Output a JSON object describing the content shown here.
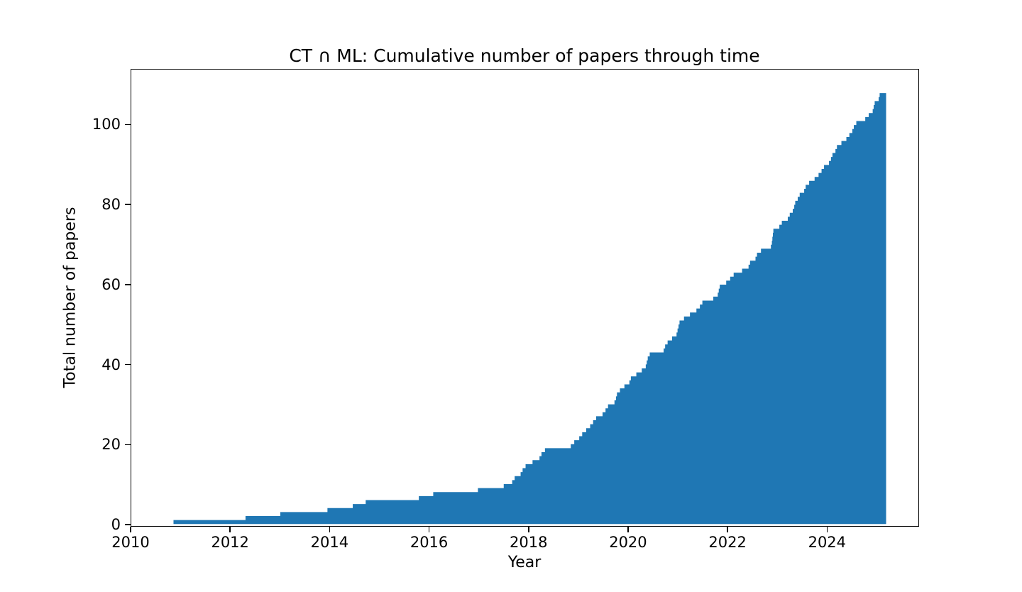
{
  "figure": {
    "title": "CT ∩ ML: Cumulative number of papers through time",
    "xlabel": "Year",
    "ylabel": "Total number of papers"
  },
  "chart_data": {
    "type": "area",
    "subtype": "cumulative-step-post",
    "title": "CT ∩ ML: Cumulative number of papers through time",
    "xlabel": "Year",
    "ylabel": "Total number of papers",
    "grid": false,
    "legend": null,
    "fill_color": "#1f77b4",
    "xlim": [
      2010.0,
      2025.85
    ],
    "ylim": [
      -0.5,
      113.9
    ],
    "x_ticks": [
      2010,
      2012,
      2014,
      2016,
      2018,
      2020,
      2022,
      2024
    ],
    "y_ticks": [
      0,
      20,
      40,
      60,
      80,
      100
    ],
    "series_end_x": 2025.2,
    "final_value": 108,
    "points": [
      [
        2010.85,
        1
      ],
      [
        2012.3,
        2
      ],
      [
        2013.0,
        3
      ],
      [
        2013.95,
        4
      ],
      [
        2014.46,
        5
      ],
      [
        2014.72,
        6
      ],
      [
        2015.79,
        7
      ],
      [
        2016.08,
        8
      ],
      [
        2016.98,
        9
      ],
      [
        2017.5,
        10
      ],
      [
        2017.67,
        11
      ],
      [
        2017.72,
        12
      ],
      [
        2017.84,
        13
      ],
      [
        2017.88,
        14
      ],
      [
        2017.94,
        15
      ],
      [
        2018.08,
        16
      ],
      [
        2018.22,
        17
      ],
      [
        2018.26,
        18
      ],
      [
        2018.33,
        19
      ],
      [
        2018.85,
        20
      ],
      [
        2018.92,
        21
      ],
      [
        2019.02,
        22
      ],
      [
        2019.08,
        23
      ],
      [
        2019.16,
        24
      ],
      [
        2019.24,
        25
      ],
      [
        2019.3,
        26
      ],
      [
        2019.36,
        27
      ],
      [
        2019.49,
        28
      ],
      [
        2019.55,
        29
      ],
      [
        2019.6,
        30
      ],
      [
        2019.73,
        31
      ],
      [
        2019.76,
        32
      ],
      [
        2019.78,
        33
      ],
      [
        2019.84,
        34
      ],
      [
        2019.93,
        35
      ],
      [
        2020.03,
        36
      ],
      [
        2020.06,
        37
      ],
      [
        2020.17,
        38
      ],
      [
        2020.28,
        39
      ],
      [
        2020.36,
        40
      ],
      [
        2020.38,
        41
      ],
      [
        2020.4,
        42
      ],
      [
        2020.44,
        43
      ],
      [
        2020.72,
        44
      ],
      [
        2020.75,
        45
      ],
      [
        2020.8,
        46
      ],
      [
        2020.89,
        47
      ],
      [
        2020.98,
        48
      ],
      [
        2021.0,
        49
      ],
      [
        2021.02,
        50
      ],
      [
        2021.04,
        51
      ],
      [
        2021.13,
        52
      ],
      [
        2021.25,
        53
      ],
      [
        2021.38,
        54
      ],
      [
        2021.45,
        55
      ],
      [
        2021.5,
        56
      ],
      [
        2021.72,
        57
      ],
      [
        2021.81,
        58
      ],
      [
        2021.83,
        59
      ],
      [
        2021.85,
        60
      ],
      [
        2021.98,
        61
      ],
      [
        2022.06,
        62
      ],
      [
        2022.13,
        63
      ],
      [
        2022.3,
        64
      ],
      [
        2022.43,
        65
      ],
      [
        2022.46,
        66
      ],
      [
        2022.57,
        67
      ],
      [
        2022.6,
        68
      ],
      [
        2022.68,
        69
      ],
      [
        2022.88,
        70
      ],
      [
        2022.9,
        71
      ],
      [
        2022.91,
        72
      ],
      [
        2022.92,
        73
      ],
      [
        2022.93,
        74
      ],
      [
        2023.05,
        75
      ],
      [
        2023.1,
        76
      ],
      [
        2023.22,
        77
      ],
      [
        2023.26,
        78
      ],
      [
        2023.32,
        79
      ],
      [
        2023.35,
        80
      ],
      [
        2023.37,
        81
      ],
      [
        2023.42,
        82
      ],
      [
        2023.46,
        83
      ],
      [
        2023.55,
        84
      ],
      [
        2023.58,
        85
      ],
      [
        2023.65,
        86
      ],
      [
        2023.76,
        87
      ],
      [
        2023.84,
        88
      ],
      [
        2023.9,
        89
      ],
      [
        2023.95,
        90
      ],
      [
        2024.05,
        91
      ],
      [
        2024.09,
        92
      ],
      [
        2024.12,
        93
      ],
      [
        2024.18,
        94
      ],
      [
        2024.21,
        95
      ],
      [
        2024.3,
        96
      ],
      [
        2024.4,
        97
      ],
      [
        2024.46,
        98
      ],
      [
        2024.52,
        99
      ],
      [
        2024.55,
        100
      ],
      [
        2024.6,
        101
      ],
      [
        2024.78,
        102
      ],
      [
        2024.85,
        103
      ],
      [
        2024.93,
        104
      ],
      [
        2024.95,
        105
      ],
      [
        2024.97,
        106
      ],
      [
        2025.05,
        107
      ],
      [
        2025.07,
        108
      ]
    ]
  }
}
